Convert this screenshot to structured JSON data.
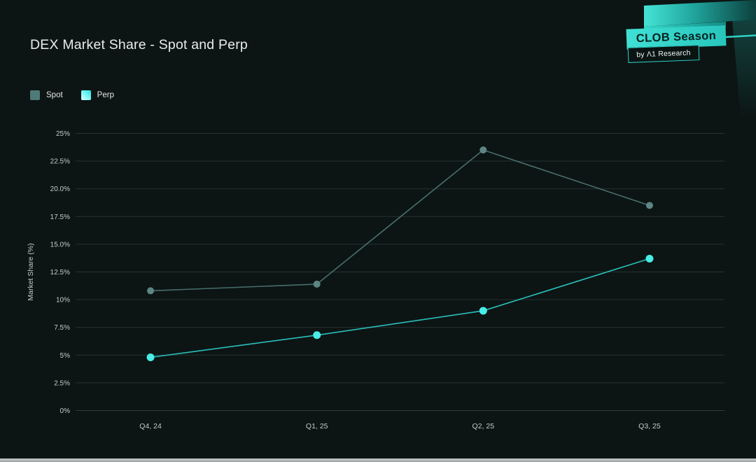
{
  "header": {
    "title": "DEX Market Share - Spot and Perp"
  },
  "badge": {
    "primary": "CLOB Season",
    "secondary": "by Λ1 Research",
    "accent": "#2ed1c6"
  },
  "legend": [
    {
      "label": "Spot",
      "color": "#4e7a78"
    },
    {
      "label": "Perp",
      "color": "#38e6e0"
    }
  ],
  "theme": {
    "background": "#0c1514",
    "grid": "#263230",
    "axis": "#2f3b39",
    "tick_text": "#c5cccb",
    "title_text": "#e8edec"
  },
  "chart_data": {
    "type": "line",
    "title": "DEX Market Share - Spot and Perp",
    "categories": [
      "Q4, 24",
      "Q1, 25",
      "Q2, 25",
      "Q3, 25"
    ],
    "series": [
      {
        "name": "Spot",
        "values": [
          10.8,
          11.4,
          23.5,
          18.5
        ],
        "color": "#476e6c",
        "dot_color": "#5d8583",
        "dot_radius": 5
      },
      {
        "name": "Perp",
        "values": [
          4.8,
          6.8,
          9.0,
          13.7
        ],
        "color": "#2abfbb",
        "dot_color": "#49ece7",
        "dot_radius": 5.5
      }
    ],
    "xlabel": "",
    "ylabel": "Market Share (%)",
    "ylim": [
      0,
      25
    ],
    "ytick_labels": [
      "0%",
      "2.5%",
      "5%",
      "7.5%",
      "10%",
      "12.5%",
      "15.0%",
      "17.5%",
      "20.0%",
      "22.5%",
      "25%"
    ],
    "grid": true,
    "legend_position": "top-left"
  }
}
